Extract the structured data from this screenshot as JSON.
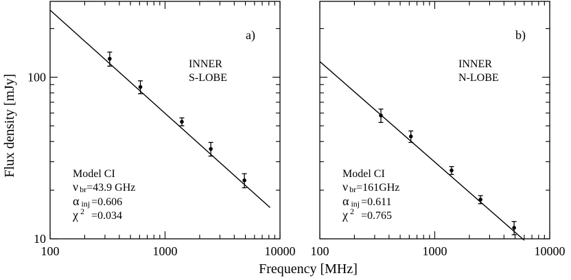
{
  "figure": {
    "xlabel": "Frequency [MHz]",
    "ylabel": "Flux density [mJy]"
  },
  "chart_data": [
    {
      "type": "scatter",
      "panel_label": "a)",
      "region_lines": [
        "INNER",
        "S-LOBE"
      ],
      "model": {
        "title": "Model CI",
        "nu_symbol": "ν",
        "nu_sub": "br",
        "nu_value": "=43.9 GHz",
        "alpha_symbol": "α",
        "alpha_sub": "inj",
        "alpha_value": "=0.606",
        "chi_symbol": "χ",
        "chi_sup": "2",
        "chi_value": "=0.034"
      },
      "xscale": "log",
      "yscale": "log",
      "xlim": [
        100,
        10000
      ],
      "ylim": [
        10,
        300
      ],
      "xticks": [
        100,
        1000,
        10000
      ],
      "xticklabels": [
        "100",
        "1000",
        "10000"
      ],
      "yticks": [
        10,
        100
      ],
      "yticklabels": [
        "10",
        "100"
      ],
      "points": [
        {
          "x": 330,
          "y": 130,
          "err": 13
        },
        {
          "x": 610,
          "y": 87,
          "err": 8
        },
        {
          "x": 1400,
          "y": 53,
          "err": 3
        },
        {
          "x": 2500,
          "y": 36,
          "err": 3.5
        },
        {
          "x": 4900,
          "y": 23,
          "err": 2.3
        }
      ],
      "fit": {
        "x": [
          100,
          8200
        ],
        "y": [
          260,
          15.6
        ]
      }
    },
    {
      "type": "scatter",
      "panel_label": "b)",
      "region_lines": [
        "INNER",
        "N-LOBE"
      ],
      "model": {
        "title": "Model CI",
        "nu_symbol": "ν",
        "nu_sub": "br",
        "nu_value": "=161GHz",
        "alpha_symbol": "α",
        "alpha_sub": "inj",
        "alpha_value": "=0.611",
        "chi_symbol": "χ",
        "chi_sup": "2",
        "chi_value": "=0.765"
      },
      "xscale": "log",
      "yscale": "log",
      "xlim": [
        100,
        10000
      ],
      "ylim": [
        10,
        300
      ],
      "xticks": [
        100,
        1000,
        10000
      ],
      "xticklabels": [
        "100",
        "1000",
        "10000"
      ],
      "yticks": [
        10,
        100
      ],
      "yticklabels": [
        "",
        ""
      ],
      "points": [
        {
          "x": 340,
          "y": 58,
          "err": 5.5
        },
        {
          "x": 620,
          "y": 43,
          "err": 3.5
        },
        {
          "x": 1400,
          "y": 26.5,
          "err": 1.5
        },
        {
          "x": 2500,
          "y": 17.5,
          "err": 1
        },
        {
          "x": 4900,
          "y": 11.7,
          "err": 1.1
        }
      ],
      "fit": {
        "x": [
          100,
          6000
        ],
        "y": [
          125,
          9.8
        ]
      }
    }
  ]
}
